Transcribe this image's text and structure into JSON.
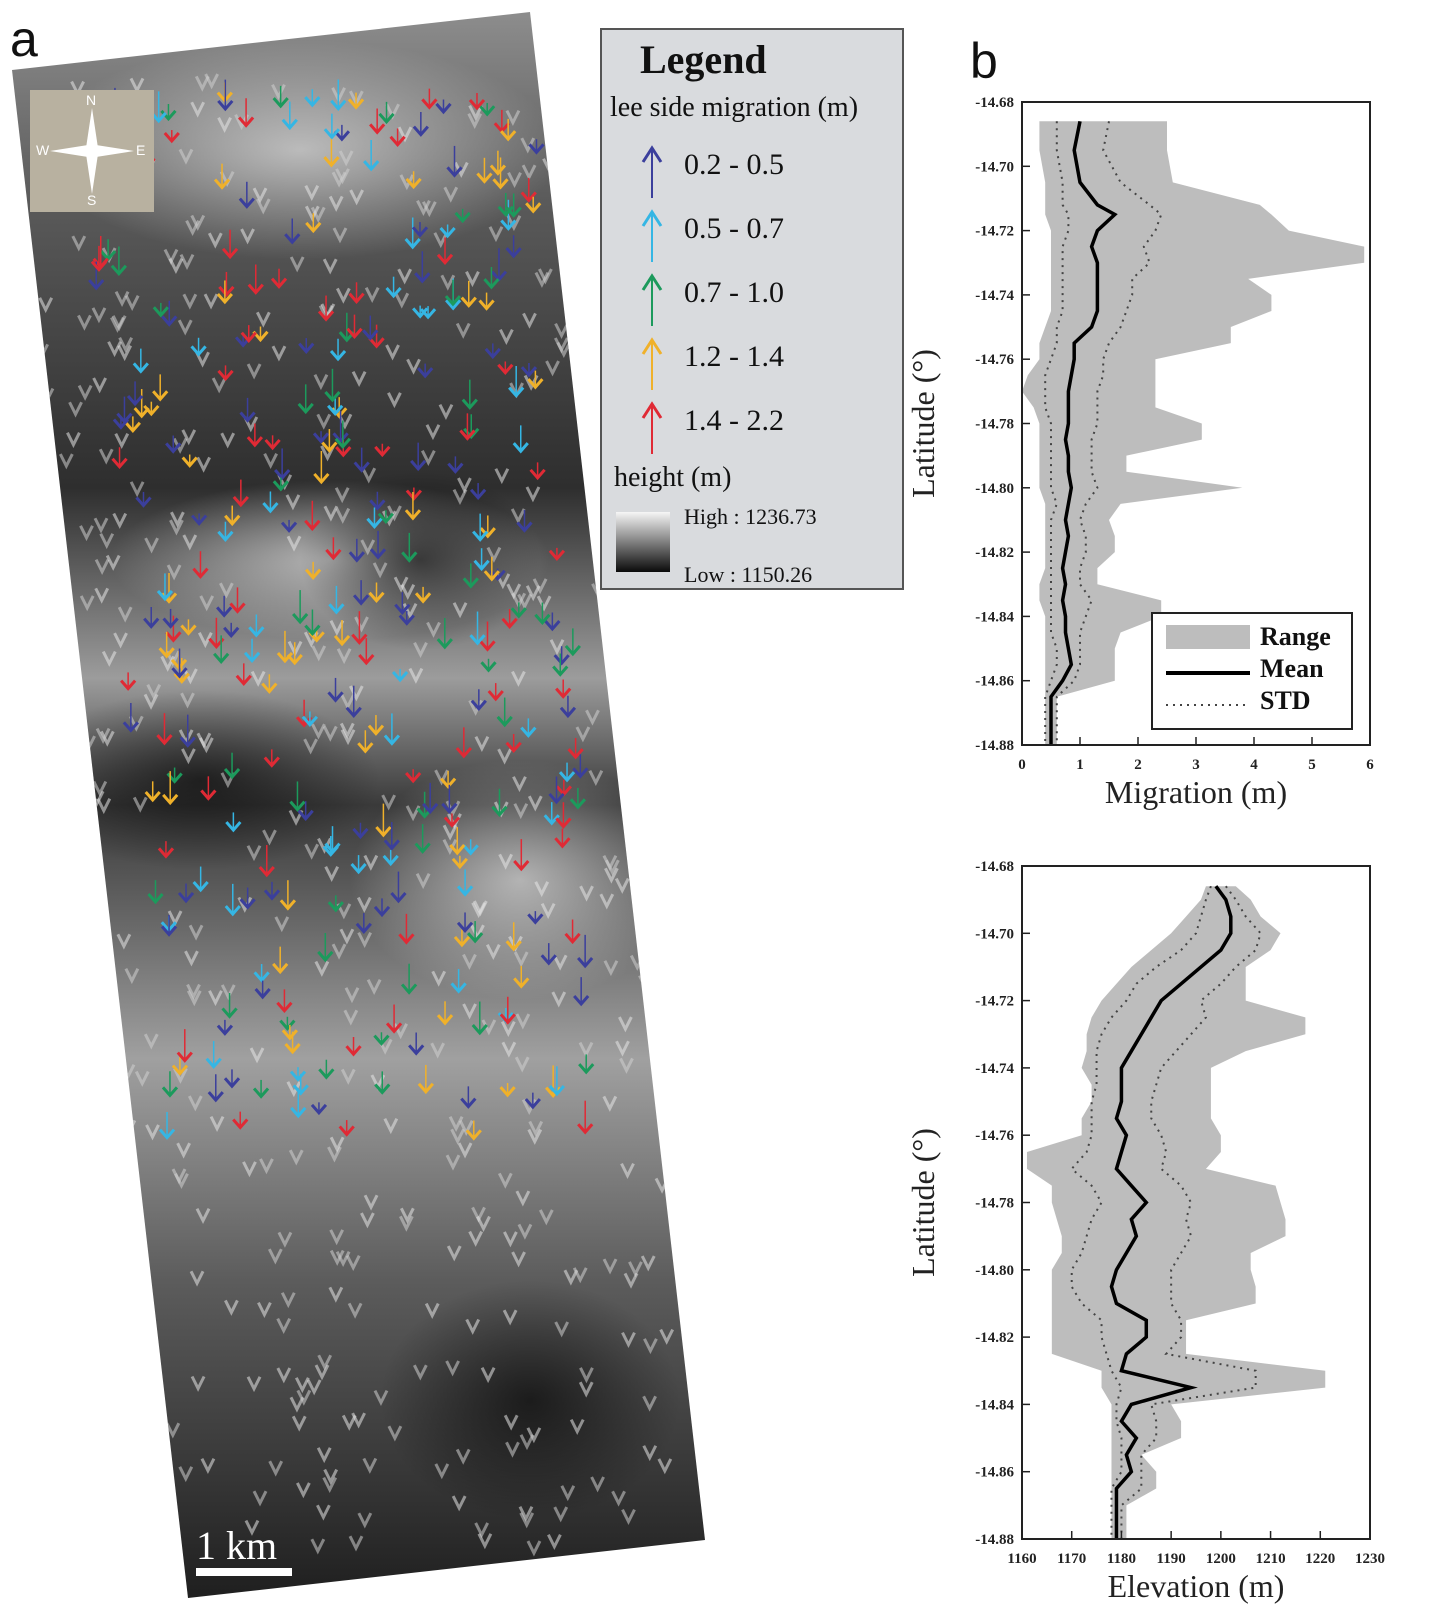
{
  "panel_a": {
    "letter": "a",
    "compass": {
      "n": "N",
      "s": "S",
      "e": "E",
      "w": "W"
    },
    "scale_bar_label": "1 km"
  },
  "legend": {
    "title": "Legend",
    "subtitle": "lee side migration (m)",
    "classes": [
      {
        "range": "0.2 - 0.5",
        "color": "#3b3f9c"
      },
      {
        "range": "0.5 - 0.7",
        "color": "#35b6e4"
      },
      {
        "range": "0.7 - 1.0",
        "color": "#1c9a5c"
      },
      {
        "range": "1.2 - 1.4",
        "color": "#f0b12a"
      },
      {
        "range": "1.4 - 2.2",
        "color": "#e02a35"
      }
    ],
    "height_title": "height (m)",
    "high_label": "High : 1236.73",
    "low_label": "Low : 1150.26"
  },
  "panel_b": {
    "letter": "b"
  },
  "chart_data": [
    {
      "type": "area",
      "xlabel": "Migration (m)",
      "ylabel": "Latitude (°)",
      "xlim": [
        0,
        6
      ],
      "ylim": [
        -14.88,
        -14.68
      ],
      "xticks": [
        "0",
        "1",
        "2",
        "3",
        "4",
        "5",
        "6"
      ],
      "yticks": [
        "-14.68",
        "-14.70",
        "-14.72",
        "-14.74",
        "-14.76",
        "-14.78",
        "-14.80",
        "-14.82",
        "-14.84",
        "-14.86",
        "-14.88"
      ],
      "legend": {
        "position": "bottom-right",
        "items": [
          "Range",
          "Mean",
          "STD"
        ]
      },
      "latitude": [
        -14.686,
        -14.695,
        -14.705,
        -14.712,
        -14.715,
        -14.72,
        -14.725,
        -14.73,
        -14.735,
        -14.74,
        -14.745,
        -14.75,
        -14.755,
        -14.76,
        -14.765,
        -14.77,
        -14.775,
        -14.78,
        -14.785,
        -14.79,
        -14.795,
        -14.8,
        -14.805,
        -14.81,
        -14.815,
        -14.82,
        -14.825,
        -14.83,
        -14.835,
        -14.84,
        -14.845,
        -14.85,
        -14.855,
        -14.86,
        -14.865,
        -14.87,
        -14.875,
        -14.88
      ],
      "range_min": [
        0.3,
        0.3,
        0.4,
        0.4,
        0.4,
        0.5,
        0.5,
        0.5,
        0.5,
        0.5,
        0.5,
        0.4,
        0.3,
        0.3,
        0.1,
        0.0,
        0.2,
        0.3,
        0.3,
        0.3,
        0.3,
        0.3,
        0.4,
        0.4,
        0.4,
        0.4,
        0.4,
        0.3,
        0.3,
        0.4,
        0.4,
        0.4,
        0.4,
        0.4,
        0.4,
        0.4,
        0.4,
        0.4
      ],
      "range_max": [
        2.5,
        2.5,
        2.6,
        4.1,
        4.3,
        4.6,
        5.9,
        5.9,
        3.9,
        4.3,
        4.3,
        3.6,
        3.6,
        2.3,
        2.3,
        2.3,
        2.3,
        3.1,
        3.1,
        1.8,
        1.8,
        3.8,
        1.7,
        1.5,
        1.6,
        1.6,
        1.3,
        1.3,
        2.4,
        2.4,
        1.7,
        1.6,
        1.6,
        1.6,
        0.6,
        0.6,
        0.6,
        0.6
      ],
      "mean": [
        1.0,
        0.9,
        1.0,
        1.3,
        1.6,
        1.3,
        1.2,
        1.3,
        1.3,
        1.3,
        1.3,
        1.2,
        0.9,
        0.9,
        0.85,
        0.8,
        0.8,
        0.8,
        0.75,
        0.8,
        0.8,
        0.85,
        0.8,
        0.75,
        0.8,
        0.75,
        0.7,
        0.75,
        0.7,
        0.75,
        0.75,
        0.8,
        0.85,
        0.7,
        0.5,
        0.5,
        0.5,
        0.5
      ],
      "std_low": [
        0.6,
        0.6,
        0.7,
        0.7,
        0.8,
        0.8,
        0.7,
        0.7,
        0.7,
        0.7,
        0.7,
        0.6,
        0.6,
        0.5,
        0.4,
        0.4,
        0.4,
        0.5,
        0.5,
        0.5,
        0.5,
        0.5,
        0.6,
        0.5,
        0.5,
        0.5,
        0.5,
        0.5,
        0.5,
        0.5,
        0.5,
        0.6,
        0.6,
        0.5,
        0.4,
        0.4,
        0.4,
        0.4
      ],
      "std_high": [
        1.5,
        1.4,
        1.7,
        2.2,
        2.4,
        2.3,
        2.1,
        2.2,
        1.9,
        1.9,
        1.8,
        1.7,
        1.5,
        1.4,
        1.4,
        1.3,
        1.3,
        1.3,
        1.2,
        1.2,
        1.2,
        1.3,
        1.1,
        1.0,
        1.1,
        1.1,
        1.0,
        1.0,
        1.2,
        1.1,
        1.0,
        1.0,
        1.0,
        0.9,
        0.6,
        0.6,
        0.6,
        0.6
      ]
    },
    {
      "type": "area",
      "xlabel": "Elevation (m)",
      "ylabel": "Latitude (°)",
      "xlim": [
        1160,
        1230
      ],
      "ylim": [
        -14.88,
        -14.68
      ],
      "xticks": [
        "1160",
        "1170",
        "1180",
        "1190",
        "1200",
        "1210",
        "1220",
        "1230"
      ],
      "yticks": [
        "-14.68",
        "-14.70",
        "-14.72",
        "-14.74",
        "-14.76",
        "-14.78",
        "-14.80",
        "-14.82",
        "-14.84",
        "-14.86",
        "-14.88"
      ],
      "latitude": [
        -14.686,
        -14.69,
        -14.695,
        -14.7,
        -14.705,
        -14.71,
        -14.715,
        -14.72,
        -14.725,
        -14.73,
        -14.735,
        -14.74,
        -14.745,
        -14.75,
        -14.755,
        -14.76,
        -14.765,
        -14.77,
        -14.775,
        -14.78,
        -14.785,
        -14.79,
        -14.795,
        -14.8,
        -14.805,
        -14.81,
        -14.815,
        -14.82,
        -14.825,
        -14.83,
        -14.835,
        -14.84,
        -14.845,
        -14.85,
        -14.855,
        -14.86,
        -14.865,
        -14.87,
        -14.875,
        -14.88
      ],
      "range_min": [
        1197,
        1196,
        1193,
        1190,
        1186,
        1182,
        1179,
        1176,
        1174,
        1173,
        1173,
        1172,
        1174,
        1174,
        1172,
        1172,
        1161,
        1161,
        1166,
        1166,
        1167,
        1168,
        1168,
        1166,
        1166,
        1166,
        1166,
        1166,
        1166,
        1176,
        1176,
        1178,
        1178,
        1178,
        1178,
        1178,
        1178,
        1178,
        1178,
        1178
      ],
      "range_max": [
        1203,
        1206,
        1208,
        1212,
        1210,
        1205,
        1205,
        1205,
        1217,
        1217,
        1205,
        1198,
        1198,
        1198,
        1198,
        1200,
        1200,
        1197,
        1211,
        1212,
        1213,
        1213,
        1206,
        1206,
        1207,
        1207,
        1193,
        1193,
        1193,
        1221,
        1221,
        1190,
        1192,
        1192,
        1184,
        1187,
        1187,
        1181,
        1181,
        1181
      ],
      "mean": [
        1199,
        1201,
        1202,
        1202,
        1200,
        1196,
        1192,
        1188,
        1186,
        1184,
        1182,
        1180,
        1180,
        1180,
        1179,
        1181,
        1180,
        1179,
        1182,
        1185,
        1182,
        1183,
        1181,
        1179,
        1178,
        1179,
        1185,
        1185,
        1181,
        1180,
        1194,
        1182,
        1180,
        1183,
        1181,
        1182,
        1179,
        1179,
        1179,
        1179
      ],
      "std_low": [
        1198,
        1197,
        1196,
        1195,
        1192,
        1187,
        1183,
        1181,
        1178,
        1176,
        1175,
        1175,
        1175,
        1174,
        1174,
        1174,
        1173,
        1170,
        1174,
        1176,
        1174,
        1173,
        1172,
        1170,
        1170,
        1172,
        1176,
        1176,
        1177,
        1178,
        1180,
        1179,
        1179,
        1180,
        1180,
        1180,
        1178,
        1178,
        1178,
        1178
      ],
      "std_high": [
        1201,
        1203,
        1205,
        1208,
        1207,
        1203,
        1200,
        1196,
        1197,
        1194,
        1191,
        1188,
        1187,
        1186,
        1186,
        1188,
        1189,
        1188,
        1192,
        1194,
        1193,
        1194,
        1192,
        1190,
        1190,
        1190,
        1192,
        1192,
        1189,
        1207,
        1207,
        1186,
        1187,
        1187,
        1184,
        1184,
        1184,
        1180,
        1180,
        1180
      ]
    }
  ]
}
